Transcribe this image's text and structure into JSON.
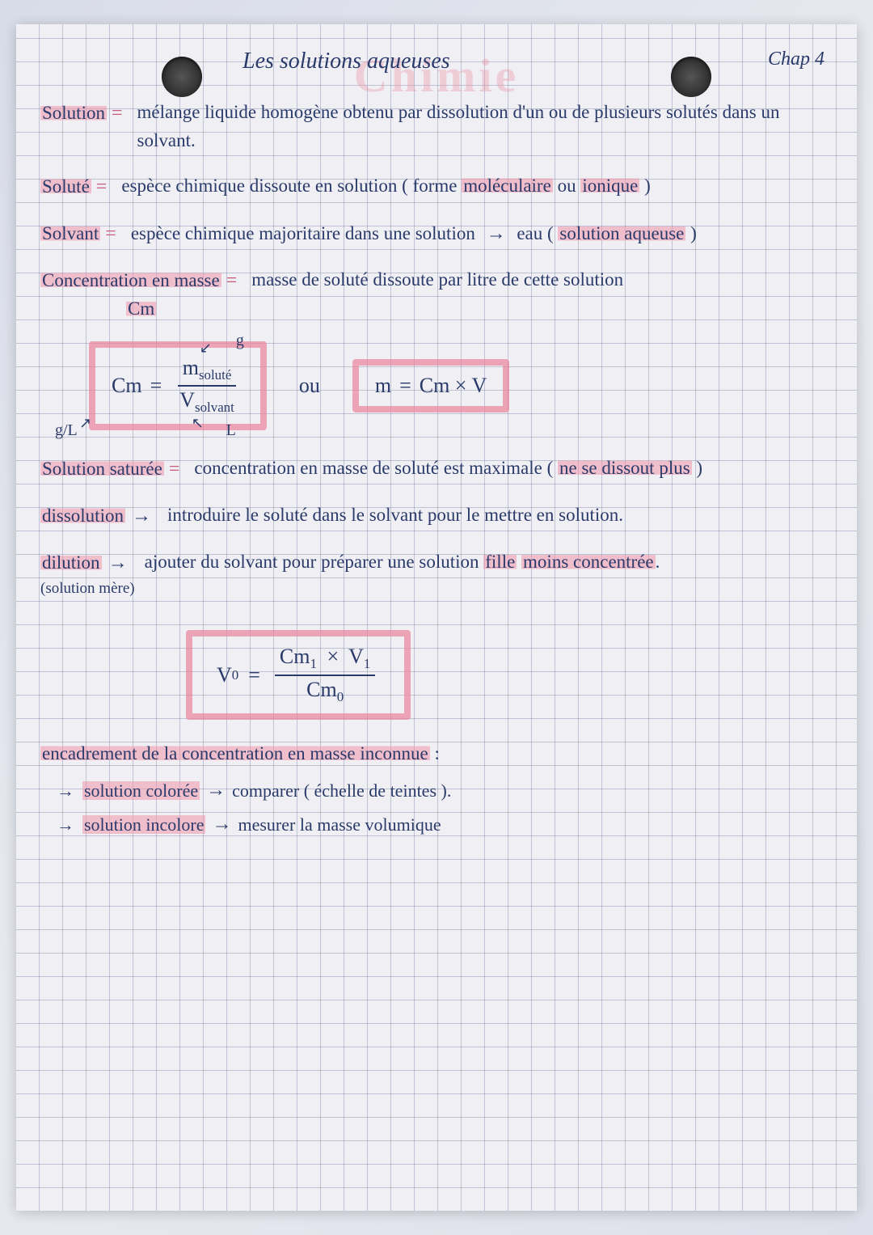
{
  "page": {
    "watermark": "Chimie",
    "title": "Les solutions aqueuses",
    "chapter": "Chap 4",
    "grid_color": "rgba(100,110,150,0.35)",
    "ink_color": "#2a3a6a",
    "highlight_color": "rgba(240,150,170,0.55)",
    "box_border_color": "rgba(235,130,155,0.7)"
  },
  "definitions": {
    "solution": {
      "label": "Solution",
      "eq": "=",
      "text": "mélange liquide homogène obtenu par dissolution d'un ou de plusieurs solutés dans un solvant."
    },
    "solute": {
      "label": "Soluté",
      "eq": "=",
      "text_pre": "espèce chimique dissoute en solution ( forme ",
      "hl1": "moléculaire",
      "mid": " ou ",
      "hl2": "ionique",
      "text_post": " )"
    },
    "solvant": {
      "label": "Solvant",
      "eq": "=",
      "text_pre": "espèce chimique majoritaire dans une solution ",
      "arrow": "→",
      "mid": " eau ( ",
      "hl": "solution aqueuse",
      "text_post": " )"
    },
    "concentration": {
      "label1": "Concentration en masse",
      "label2": "Cm",
      "eq": "=",
      "text": "masse de soluté dissoute par litre de cette solution"
    },
    "saturee": {
      "label": "Solution saturée",
      "eq": "=",
      "text_pre": "concentration en masse de soluté est maximale ( ",
      "hl": "ne se dissout plus",
      "text_post": " )"
    },
    "dissolution": {
      "label": "dissolution",
      "arrow": "→",
      "text": "introduire le soluté dans le solvant pour le mettre en solution."
    },
    "dilution": {
      "label": "dilution",
      "sublabel": "(solution mère)",
      "arrow": "→",
      "text_pre": "ajouter du solvant pour préparer une solution ",
      "hl1": "fille",
      "mid": " ",
      "hl2": "moins concentrée",
      "text_post": "."
    },
    "encadrement": {
      "label": "encadrement de la concentration en masse inconnue",
      "colon": ":",
      "item1_hl": "solution colorée",
      "item1_text": "comparer ( échelle de teintes ).",
      "item2_hl": "solution incolore",
      "item2_text": "mesurer la masse volumique",
      "arrow": "→"
    }
  },
  "formulas": {
    "cm": {
      "lhs": "Cm",
      "eq": "=",
      "num": "m",
      "num_sub": "soluté",
      "den": "V",
      "den_sub": "solvant",
      "unit_result": "g/L",
      "unit_num": "g",
      "unit_den": "L"
    },
    "ou": "ou",
    "m": {
      "lhs": "m",
      "eq": "=",
      "rhs": "Cm × V"
    },
    "v0": {
      "lhs": "V",
      "lhs_sub": "0",
      "eq": "=",
      "num_a": "Cm",
      "num_a_sub": "1",
      "times": "×",
      "num_b": "V",
      "num_b_sub": "1",
      "den": "Cm",
      "den_sub": "0"
    }
  }
}
